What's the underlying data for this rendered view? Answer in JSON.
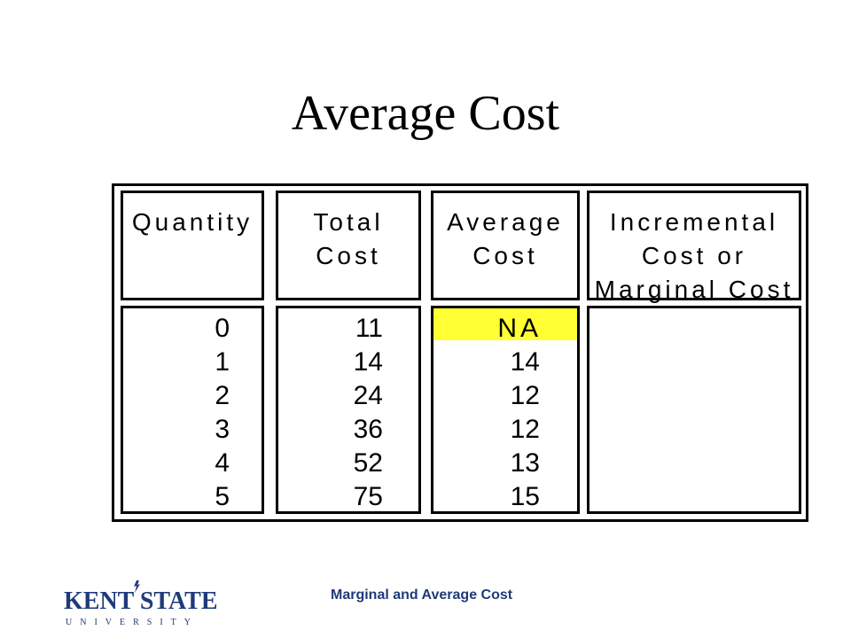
{
  "slide": {
    "title": "Average Cost",
    "footer": "Marginal and Average Cost"
  },
  "logo": {
    "name": "KENT STATE",
    "subtitle": "UNIVERSITY"
  },
  "table": {
    "headers": [
      [
        "Quantity"
      ],
      [
        "Total",
        "Cost"
      ],
      [
        "Average",
        "Cost"
      ],
      [
        "Incremental",
        "Cost or",
        "Marginal Cost"
      ]
    ],
    "quantity": [
      "0",
      "1",
      "2",
      "3",
      "4",
      "5"
    ],
    "total_cost": [
      "11",
      "14",
      "24",
      "36",
      "52",
      "75"
    ],
    "average_cost": [
      "NA",
      "14",
      "12",
      "12",
      "13",
      "15"
    ],
    "highlight_color": "#ffff33"
  }
}
